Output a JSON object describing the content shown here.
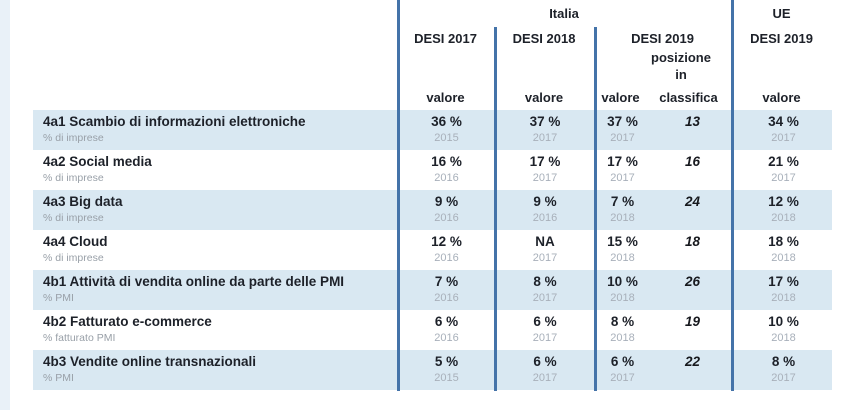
{
  "colors": {
    "row_highlight": "#d9e8f2",
    "divider_blue": "#4473a9",
    "text_dark": "#1d2129",
    "text_grey": "#99a0a8",
    "year_grey": "#a8b0ba",
    "page_margin_strip": "#e9f1f8"
  },
  "header": {
    "italia_group": "Italia",
    "ue_group": "UE",
    "desi_2017": "DESI 2017",
    "desi_2018": "DESI 2018",
    "desi_2019": "DESI 2019",
    "ue_desi_2019": "DESI 2019",
    "posizione": "posizione",
    "in": "in",
    "valore": "valore",
    "classifica": "classifica"
  },
  "rows": [
    {
      "label": "4a1 Scambio di informazioni elettroniche",
      "sublabel": "% di imprese",
      "desi2017": {
        "value": "36 %",
        "year": "2015"
      },
      "desi2018": {
        "value": "37 %",
        "year": "2017"
      },
      "desi2019": {
        "value": "37 %",
        "year": "2017",
        "rank": "13"
      },
      "ue": {
        "value": "34 %",
        "year": "2017"
      }
    },
    {
      "label": "4a2 Social media",
      "sublabel": "% di imprese",
      "desi2017": {
        "value": "16 %",
        "year": "2016"
      },
      "desi2018": {
        "value": "17 %",
        "year": "2017"
      },
      "desi2019": {
        "value": "17 %",
        "year": "2017",
        "rank": "16"
      },
      "ue": {
        "value": "21 %",
        "year": "2017"
      }
    },
    {
      "label": "4a3 Big data",
      "sublabel": "% di imprese",
      "desi2017": {
        "value": "9 %",
        "year": "2016"
      },
      "desi2018": {
        "value": "9 %",
        "year": "2016"
      },
      "desi2019": {
        "value": "7 %",
        "year": "2018",
        "rank": "24"
      },
      "ue": {
        "value": "12 %",
        "year": "2018"
      }
    },
    {
      "label": "4a4 Cloud",
      "sublabel": "% di imprese",
      "desi2017": {
        "value": "12 %",
        "year": "2016"
      },
      "desi2018": {
        "value": "NA",
        "year": "2017"
      },
      "desi2019": {
        "value": "15 %",
        "year": "2018",
        "rank": "18"
      },
      "ue": {
        "value": "18 %",
        "year": "2018"
      }
    },
    {
      "label": "4b1 Attività di vendita online da parte delle PMI",
      "sublabel": "% PMI",
      "desi2017": {
        "value": "7 %",
        "year": "2016"
      },
      "desi2018": {
        "value": "8 %",
        "year": "2017"
      },
      "desi2019": {
        "value": "10 %",
        "year": "2018",
        "rank": "26"
      },
      "ue": {
        "value": "17 %",
        "year": "2018"
      }
    },
    {
      "label": "4b2 Fatturato e-commerce",
      "sublabel": "% fatturato PMI",
      "desi2017": {
        "value": "6 %",
        "year": "2016"
      },
      "desi2018": {
        "value": "6 %",
        "year": "2017"
      },
      "desi2019": {
        "value": "8 %",
        "year": "2018",
        "rank": "19"
      },
      "ue": {
        "value": "10 %",
        "year": "2018"
      }
    },
    {
      "label": "4b3 Vendite online transnazionali",
      "sublabel": "% PMI",
      "desi2017": {
        "value": "5 %",
        "year": "2015"
      },
      "desi2018": {
        "value": "6 %",
        "year": "2017"
      },
      "desi2019": {
        "value": "6 %",
        "year": "2017",
        "rank": "22"
      },
      "ue": {
        "value": "8 %",
        "year": "2017"
      }
    }
  ]
}
